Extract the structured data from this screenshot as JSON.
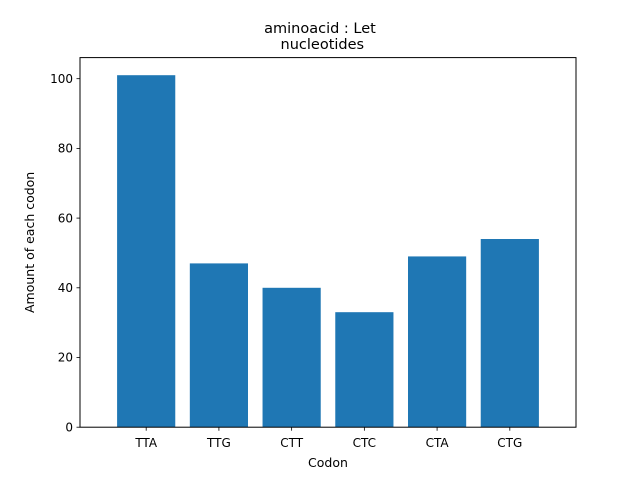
{
  "chart_data": {
    "type": "bar",
    "title_lines": [
      "aminoacid : Let",
      " nucleotides"
    ],
    "xlabel": "Codon",
    "ylabel": "Amount of each codon",
    "categories": [
      "TTA",
      "TTG",
      "CTT",
      "CTC",
      "CTA",
      "CTG"
    ],
    "values": [
      101,
      47,
      40,
      33,
      49,
      54
    ],
    "ylim": [
      0,
      106.05
    ],
    "yticks": [
      0,
      20,
      40,
      60,
      80,
      100
    ],
    "grid": false,
    "bar_color": "#1f77b4"
  }
}
